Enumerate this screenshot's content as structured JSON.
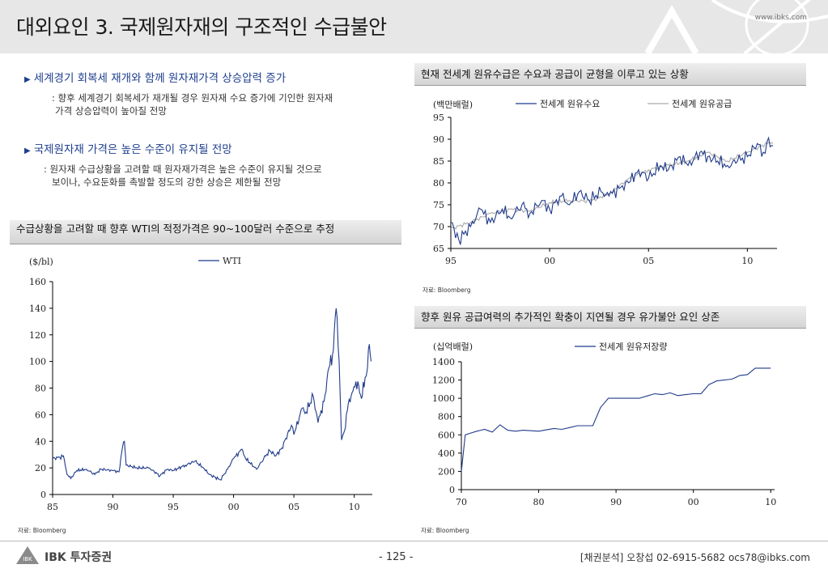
{
  "header": {
    "title": "대외요인 3. 국제원자재의 구조적인 수급불안",
    "site": "www.ibks.com"
  },
  "bullets": [
    {
      "title": "세계경기 회복세 재개와 함께 원자재가격 상승압력 증가",
      "lines": [
        ": 향후 세계경기 회복세가 재개될 경우 원자재 수요 증가에 기인한 원자재",
        "가격 상승압력이 높아질 전망"
      ]
    },
    {
      "title": "국제원자재 가격은 높은 수준이 유지될 전망",
      "lines": [
        ": 원자재 수급상황을 고려할 때 원자재가격은 높은 수준이 유지될 것으로",
        "보이나, 수요둔화를 촉발할 정도의 강한 상승은 제한될 전망"
      ]
    }
  ],
  "footer": {
    "page": "- 125 -",
    "contact": "[채권분석] 오창섭 02-6915-5682 ocs78@ibks.com",
    "logo_text": "IBK 투자증권",
    "logo_mark": "IBK"
  },
  "chart_data": [
    {
      "type": "line",
      "title": "수급상황을 고려할 때 향후 WTI의 적정가격은 90~100달러 수준으로 추정",
      "unit": "($/bl)",
      "x_tick_labels": [
        "85",
        "90",
        "95",
        "00",
        "05",
        "10"
      ],
      "y_tick_labels": [
        "0",
        "20",
        "40",
        "60",
        "80",
        "100",
        "120",
        "140",
        "160"
      ],
      "xlim": [
        1985,
        2011.5
      ],
      "ylim": [
        0,
        160
      ],
      "source": "자료: Bloomberg",
      "series": [
        {
          "name": "WTI",
          "color": "#1f3a8a",
          "points": [
            [
              1985,
              27
            ],
            [
              1985.6,
              28
            ],
            [
              1985.9,
              29
            ],
            [
              1986.2,
              15
            ],
            [
              1986.5,
              12
            ],
            [
              1987,
              18
            ],
            [
              1987.8,
              19
            ],
            [
              1988.5,
              15
            ],
            [
              1989,
              19
            ],
            [
              1990,
              18
            ],
            [
              1990.5,
              17
            ],
            [
              1990.8,
              36
            ],
            [
              1990.95,
              40
            ],
            [
              1991.1,
              22
            ],
            [
              1992,
              20
            ],
            [
              1993,
              20
            ],
            [
              1993.9,
              14
            ],
            [
              1994.5,
              19
            ],
            [
              1995,
              18
            ],
            [
              1996,
              22
            ],
            [
              1996.8,
              25
            ],
            [
              1997.5,
              20
            ],
            [
              1998,
              15
            ],
            [
              1998.9,
              11
            ],
            [
              1999.5,
              19
            ],
            [
              2000,
              27
            ],
            [
              2000.7,
              34
            ],
            [
              2001,
              27
            ],
            [
              2001.9,
              19
            ],
            [
              2002.5,
              27
            ],
            [
              2003,
              33
            ],
            [
              2003.5,
              29
            ],
            [
              2004,
              35
            ],
            [
              2004.8,
              52
            ],
            [
              2005,
              45
            ],
            [
              2005.7,
              65
            ],
            [
              2006,
              62
            ],
            [
              2006.6,
              74
            ],
            [
              2007,
              54
            ],
            [
              2007.5,
              70
            ],
            [
              2007.9,
              95
            ],
            [
              2008.2,
              105
            ],
            [
              2008.5,
              140
            ],
            [
              2008.75,
              100
            ],
            [
              2008.95,
              41
            ],
            [
              2009.2,
              48
            ],
            [
              2009.5,
              68
            ],
            [
              2009.9,
              78
            ],
            [
              2010.3,
              85
            ],
            [
              2010.6,
              72
            ],
            [
              2010.9,
              88
            ],
            [
              2011.1,
              95
            ],
            [
              2011.25,
              113
            ],
            [
              2011.4,
              100
            ]
          ]
        }
      ]
    },
    {
      "type": "line",
      "title": "현재 전세계 원유수급은 수요과 공급이 균형을 이루고 있는 상황",
      "unit": "(백만배럴)",
      "x_tick_labels": [
        "95",
        "00",
        "05",
        "10"
      ],
      "y_tick_labels": [
        "65",
        "70",
        "75",
        "80",
        "85",
        "90",
        "95"
      ],
      "xlim": [
        1995,
        2011.5
      ],
      "ylim": [
        65,
        95
      ],
      "legend": "top",
      "source": "자료: Bloomberg",
      "series": [
        {
          "name": "전세계 원유수요",
          "color": "#1f3a8a",
          "points": [
            [
              1995,
              71
            ],
            [
              1995.4,
              67
            ],
            [
              1996,
              70
            ],
            [
              1996.5,
              74
            ],
            [
              1997,
              71
            ],
            [
              1997.6,
              74
            ],
            [
              1998,
              72
            ],
            [
              1998.6,
              75
            ],
            [
              1999,
              73
            ],
            [
              1999.6,
              76
            ],
            [
              2000,
              74
            ],
            [
              2000.6,
              77
            ],
            [
              2001,
              75
            ],
            [
              2001.5,
              78
            ],
            [
              2002,
              76
            ],
            [
              2002.6,
              78
            ],
            [
              2003,
              77
            ],
            [
              2003.6,
              79
            ],
            [
              2004,
              80
            ],
            [
              2004.5,
              83
            ],
            [
              2005,
              81
            ],
            [
              2005.6,
              84
            ],
            [
              2006,
              83
            ],
            [
              2006.6,
              86
            ],
            [
              2007,
              84
            ],
            [
              2007.6,
              87
            ],
            [
              2008,
              86
            ],
            [
              2008.5,
              85
            ],
            [
              2009,
              84
            ],
            [
              2009.5,
              85
            ],
            [
              2010,
              86
            ],
            [
              2010.5,
              89
            ],
            [
              2010.8,
              87
            ],
            [
              2011,
              89.5
            ],
            [
              2011.3,
              88.5
            ]
          ]
        },
        {
          "name": "전세계 원유공급",
          "color": "#aaaaaa",
          "points": [
            [
              1995,
              69.5
            ],
            [
              1996,
              71
            ],
            [
              1997,
              73
            ],
            [
              1998,
              74
            ],
            [
              1999,
              73.5
            ],
            [
              2000,
              75.5
            ],
            [
              2001,
              76
            ],
            [
              2002,
              75.8
            ],
            [
              2003,
              77.5
            ],
            [
              2004,
              81
            ],
            [
              2005,
              83
            ],
            [
              2006,
              84
            ],
            [
              2007,
              85
            ],
            [
              2008,
              87
            ],
            [
              2009,
              85
            ],
            [
              2010,
              87
            ],
            [
              2011,
              89
            ],
            [
              2011.3,
              89
            ]
          ]
        }
      ]
    },
    {
      "type": "line",
      "title": "향후 원유 공급여력의 추가적인 확충이 지연될 경우 유가불안 요인 상존",
      "unit": "(십억배럴)",
      "x_tick_labels": [
        "70",
        "80",
        "90",
        "00",
        "10"
      ],
      "y_tick_labels": [
        "0",
        "200",
        "400",
        "600",
        "800",
        "1000",
        "1200",
        "1400"
      ],
      "xlim": [
        1970,
        2010.5
      ],
      "ylim": [
        0,
        1400
      ],
      "source": "자료: Bloomberg",
      "series": [
        {
          "name": "전세계 원유저장량",
          "color": "#1f3a8a",
          "points": [
            [
              1970,
              200
            ],
            [
              1970.5,
              600
            ],
            [
              1972,
              640
            ],
            [
              1973,
              660
            ],
            [
              1974,
              630
            ],
            [
              1975,
              710
            ],
            [
              1976,
              650
            ],
            [
              1977,
              640
            ],
            [
              1978,
              650
            ],
            [
              1980,
              640
            ],
            [
              1982,
              670
            ],
            [
              1983,
              660
            ],
            [
              1985,
              700
            ],
            [
              1987,
              700
            ],
            [
              1988,
              900
            ],
            [
              1989,
              1000
            ],
            [
              1990,
              1000
            ],
            [
              1993,
              1000
            ],
            [
              1995,
              1050
            ],
            [
              1996,
              1040
            ],
            [
              1997,
              1060
            ],
            [
              1998,
              1030
            ],
            [
              2000,
              1050
            ],
            [
              2001,
              1050
            ],
            [
              2002,
              1150
            ],
            [
              2003,
              1190
            ],
            [
              2004,
              1200
            ],
            [
              2005,
              1210
            ],
            [
              2006,
              1250
            ],
            [
              2007,
              1260
            ],
            [
              2008,
              1330
            ],
            [
              2010,
              1330
            ]
          ]
        }
      ]
    }
  ]
}
